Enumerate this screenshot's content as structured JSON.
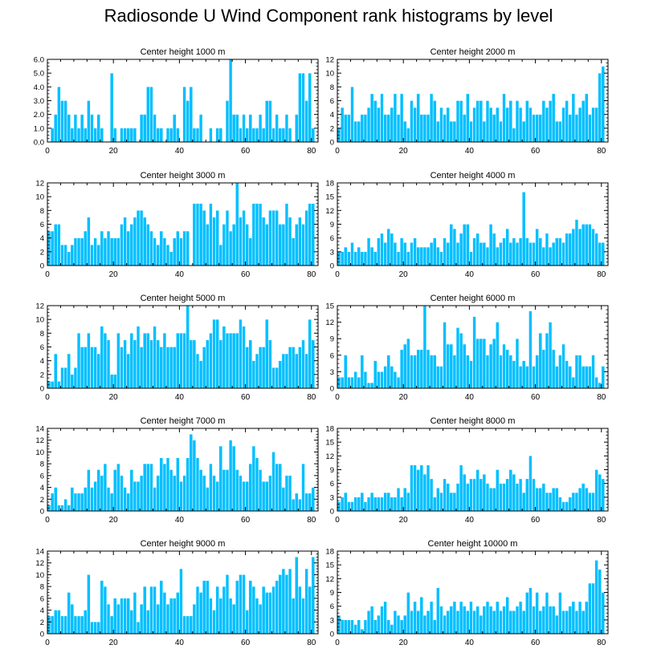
{
  "chart_data": {
    "type": "bar",
    "title": "Radiosonde U Wind Component rank histograms by level",
    "bar_color": "#00bfff",
    "xlim": [
      0,
      82
    ],
    "xticks": [
      0,
      20,
      40,
      60,
      80
    ],
    "panels": [
      {
        "title": "Center height 1000 m",
        "ylim": [
          0,
          6
        ],
        "yticks": [
          "0.0",
          "1.0",
          "2.0",
          "3.0",
          "4.0",
          "5.0",
          "6.0"
        ],
        "values": [
          0,
          1,
          2,
          4,
          3,
          3,
          2,
          1,
          2,
          1,
          2,
          1,
          3,
          2,
          1,
          2,
          1,
          0,
          0,
          5,
          1,
          0,
          1,
          1,
          1,
          1,
          1,
          0,
          2,
          2,
          4,
          4,
          2,
          1,
          1,
          0,
          1,
          1,
          2,
          1,
          0,
          4,
          3,
          4,
          1,
          1,
          2,
          0,
          0,
          1,
          0,
          1,
          1,
          0,
          3,
          6,
          2,
          2,
          1,
          2,
          1,
          2,
          1,
          1,
          2,
          1,
          3,
          3,
          1,
          2,
          1,
          1,
          2,
          1,
          0,
          2,
          5,
          5,
          3,
          5,
          1
        ]
      },
      {
        "title": "Center height 2000 m",
        "ylim": [
          0,
          12
        ],
        "yticks": [
          "0",
          "2",
          "4",
          "6",
          "8",
          "10",
          "12"
        ],
        "values": [
          2,
          5,
          4,
          4,
          8,
          3,
          3,
          4,
          4,
          5,
          7,
          6,
          5,
          7,
          4,
          4,
          5,
          7,
          4,
          7,
          3,
          2,
          6,
          5,
          7,
          4,
          4,
          4,
          7,
          6,
          3,
          5,
          4,
          5,
          3,
          3,
          6,
          6,
          4,
          7,
          3,
          5,
          6,
          6,
          3,
          6,
          5,
          4,
          5,
          3,
          7,
          5,
          6,
          2,
          6,
          5,
          3,
          6,
          5,
          4,
          4,
          4,
          6,
          5,
          6,
          7,
          3,
          3,
          5,
          6,
          4,
          7,
          4,
          5,
          6,
          7,
          4,
          5,
          5,
          10,
          11
        ]
      },
      {
        "title": "Center height 3000 m",
        "ylim": [
          0,
          12
        ],
        "yticks": [
          "0",
          "2",
          "4",
          "6",
          "8",
          "10",
          "12"
        ],
        "values": [
          5,
          5,
          6,
          6,
          3,
          3,
          2,
          3,
          4,
          4,
          4,
          5,
          7,
          3,
          4,
          3,
          5,
          4,
          5,
          4,
          4,
          4,
          6,
          7,
          5,
          6,
          7,
          8,
          8,
          7,
          6,
          5,
          4,
          3,
          5,
          4,
          3,
          2,
          4,
          5,
          4,
          5,
          5,
          0,
          9,
          9,
          9,
          8,
          6,
          9,
          7,
          8,
          3,
          6,
          8,
          5,
          6,
          12,
          7,
          8,
          6,
          4,
          9,
          9,
          9,
          7,
          6,
          8,
          8,
          8,
          6,
          6,
          9,
          7,
          4,
          6,
          7,
          6,
          8,
          9,
          9
        ]
      },
      {
        "title": "Center height 4000 m",
        "ylim": [
          0,
          18
        ],
        "yticks": [
          "0",
          "3",
          "6",
          "9",
          "12",
          "15",
          "18"
        ],
        "values": [
          3,
          3,
          4,
          3,
          5,
          3,
          4,
          3,
          3,
          6,
          4,
          3,
          6,
          7,
          5,
          8,
          7,
          5,
          3,
          6,
          5,
          3,
          5,
          6,
          4,
          4,
          4,
          4,
          5,
          6,
          4,
          3,
          6,
          5,
          9,
          8,
          5,
          7,
          9,
          9,
          3,
          6,
          7,
          5,
          5,
          4,
          9,
          7,
          4,
          5,
          6,
          8,
          5,
          6,
          5,
          6,
          16,
          6,
          5,
          5,
          8,
          6,
          4,
          7,
          4,
          5,
          6,
          6,
          5,
          7,
          7,
          8,
          10,
          8,
          9,
          9,
          9,
          8,
          7,
          5,
          5
        ]
      },
      {
        "title": "Center height 5000 m",
        "ylim": [
          0,
          12
        ],
        "yticks": [
          "0",
          "2",
          "4",
          "6",
          "8",
          "10",
          "12"
        ],
        "values": [
          1,
          1,
          5,
          1,
          3,
          3,
          5,
          2,
          3,
          8,
          6,
          6,
          8,
          6,
          6,
          5,
          9,
          8,
          7,
          2,
          2,
          8,
          6,
          7,
          5,
          8,
          7,
          9,
          6,
          8,
          8,
          7,
          9,
          7,
          6,
          8,
          6,
          6,
          6,
          8,
          8,
          8,
          12,
          7,
          7,
          5,
          4,
          6,
          7,
          8,
          10,
          10,
          7,
          9,
          8,
          8,
          8,
          8,
          10,
          9,
          6,
          7,
          4,
          5,
          6,
          6,
          10,
          7,
          3,
          3,
          4,
          5,
          5,
          6,
          6,
          5,
          6,
          7,
          5,
          10,
          7
        ]
      },
      {
        "title": "Center height 6000 m",
        "ylim": [
          0,
          15
        ],
        "yticks": [
          "0",
          "3",
          "6",
          "9",
          "12",
          "15"
        ],
        "values": [
          2,
          2,
          6,
          2,
          2,
          3,
          2,
          6,
          3,
          1,
          1,
          5,
          3,
          3,
          4,
          6,
          4,
          3,
          2,
          7,
          8,
          9,
          6,
          6,
          7,
          7,
          15,
          7,
          6,
          6,
          4,
          4,
          12,
          8,
          8,
          6,
          11,
          10,
          8,
          6,
          5,
          13,
          9,
          9,
          9,
          6,
          8,
          9,
          12,
          6,
          8,
          7,
          6,
          5,
          9,
          4,
          5,
          4,
          14,
          4,
          6,
          10,
          7,
          10,
          12,
          7,
          4,
          6,
          8,
          5,
          4,
          2,
          6,
          6,
          4,
          4,
          4,
          6,
          2,
          1,
          4
        ]
      },
      {
        "title": "Center height 7000 m",
        "ylim": [
          0,
          14
        ],
        "yticks": [
          "0",
          "2",
          "4",
          "6",
          "8",
          "10",
          "12",
          "14"
        ],
        "values": [
          1,
          3,
          4,
          1,
          1,
          2,
          1,
          4,
          3,
          3,
          3,
          4,
          7,
          4,
          5,
          7,
          6,
          8,
          4,
          3,
          7,
          8,
          6,
          4,
          3,
          7,
          5,
          5,
          6,
          8,
          8,
          8,
          4,
          6,
          9,
          8,
          9,
          7,
          6,
          9,
          5,
          6,
          9,
          13,
          12,
          9,
          7,
          6,
          4,
          8,
          6,
          5,
          11,
          7,
          7,
          12,
          11,
          7,
          6,
          5,
          5,
          8,
          11,
          9,
          7,
          5,
          5,
          6,
          10,
          8,
          8,
          4,
          6,
          6,
          2,
          3,
          2,
          8,
          3,
          3,
          4
        ]
      },
      {
        "title": "Center height 8000 m",
        "ylim": [
          0,
          18
        ],
        "yticks": [
          "0",
          "3",
          "6",
          "9",
          "12",
          "15",
          "18"
        ],
        "values": [
          2,
          3,
          4,
          2,
          2,
          3,
          3,
          4,
          2,
          3,
          4,
          3,
          3,
          3,
          4,
          4,
          3,
          3,
          5,
          3,
          5,
          4,
          10,
          10,
          9,
          10,
          8,
          10,
          7,
          3,
          5,
          4,
          7,
          6,
          4,
          4,
          6,
          10,
          8,
          6,
          7,
          7,
          9,
          7,
          8,
          6,
          5,
          5,
          9,
          6,
          6,
          7,
          9,
          8,
          6,
          7,
          4,
          7,
          12,
          7,
          5,
          5,
          6,
          4,
          4,
          5,
          5,
          3,
          2,
          2,
          3,
          4,
          4,
          5,
          6,
          5,
          4,
          4,
          9,
          8,
          7
        ]
      },
      {
        "title": "Center height 9000 m",
        "ylim": [
          0,
          14
        ],
        "yticks": [
          "0",
          "2",
          "4",
          "6",
          "8",
          "10",
          "12",
          "14"
        ],
        "values": [
          3,
          3,
          4,
          4,
          3,
          3,
          7,
          5,
          3,
          3,
          3,
          4,
          10,
          2,
          2,
          2,
          9,
          8,
          5,
          3,
          6,
          5,
          6,
          6,
          6,
          4,
          7,
          2,
          5,
          8,
          4,
          8,
          8,
          5,
          9,
          7,
          5,
          6,
          6,
          7,
          11,
          3,
          3,
          3,
          5,
          8,
          7,
          9,
          9,
          6,
          4,
          8,
          6,
          8,
          10,
          6,
          5,
          9,
          10,
          10,
          4,
          9,
          8,
          6,
          5,
          8,
          7,
          7,
          8,
          9,
          10,
          11,
          10,
          11,
          6,
          13,
          8,
          6,
          11,
          8,
          13
        ]
      },
      {
        "title": "Center height 10000 m",
        "ylim": [
          0,
          18
        ],
        "yticks": [
          "0",
          "3",
          "6",
          "9",
          "12",
          "15",
          "18"
        ],
        "values": [
          4,
          3,
          3,
          3,
          3,
          2,
          3,
          1,
          3,
          5,
          6,
          3,
          4,
          6,
          7,
          3,
          2,
          5,
          4,
          3,
          4,
          9,
          5,
          7,
          5,
          8,
          4,
          5,
          7,
          3,
          10,
          6,
          4,
          5,
          6,
          7,
          5,
          7,
          6,
          5,
          7,
          5,
          6,
          4,
          6,
          7,
          6,
          5,
          7,
          5,
          6,
          8,
          5,
          5,
          6,
          7,
          5,
          9,
          10,
          6,
          9,
          5,
          6,
          9,
          6,
          6,
          4,
          9,
          5,
          5,
          6,
          7,
          5,
          7,
          5,
          7,
          11,
          11,
          16,
          14,
          9
        ]
      }
    ]
  }
}
